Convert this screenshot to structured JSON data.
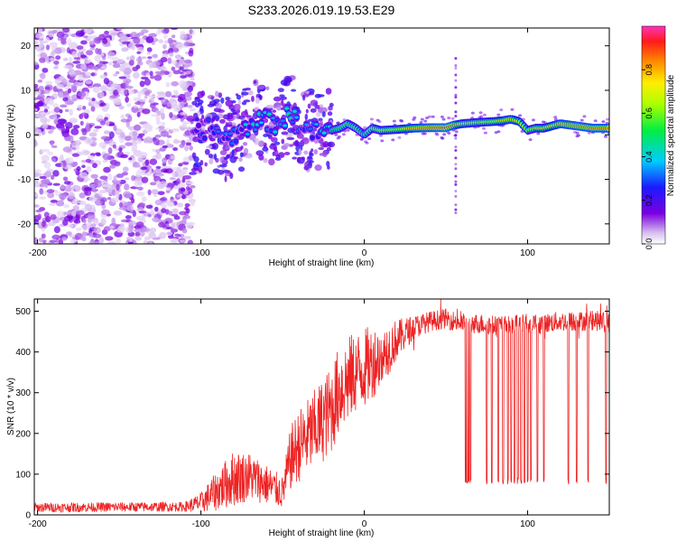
{
  "figure_title": "S233.2026.019.19.53.E29",
  "chart_data": [
    {
      "type": "heatmap",
      "title": "S233.2026.019.19.53.E29",
      "xlabel": "Height of straight line (km)",
      "ylabel": "Frequency (Hz)",
      "xlim": [
        -202,
        150
      ],
      "ylim": [
        -24.5,
        24
      ],
      "xticks": [
        -200,
        -100,
        0,
        100
      ],
      "xtick_labels": [
        "-200",
        "-100",
        "0",
        "100"
      ],
      "yticks": [
        -20,
        -10,
        0,
        10,
        20
      ],
      "ytick_labels": [
        "-20",
        "-10",
        "0",
        "10",
        "20"
      ],
      "colorbar": {
        "label": "Normalized spectral amplitude",
        "range": [
          0,
          1
        ],
        "ticks": [
          0.0,
          0.2,
          0.4,
          0.6,
          0.8
        ],
        "tick_labels": [
          "0.0",
          "0.2",
          "0.4",
          "0.6",
          "0.8"
        ]
      },
      "dominant_frequency_trace": {
        "x": [
          -105,
          -95,
          -85,
          -75,
          -65,
          -55,
          -45,
          -35,
          -25,
          -15,
          -10,
          -5,
          0,
          5,
          10,
          20,
          30,
          40,
          50,
          55,
          60,
          70,
          80,
          85,
          90,
          95,
          100,
          105,
          110,
          120,
          130,
          140,
          150
        ],
        "freq": [
          -1,
          2,
          -1,
          1,
          3.5,
          2.5,
          4.5,
          1,
          0.5,
          1.5,
          2.5,
          1.5,
          0,
          1.5,
          1,
          1.2,
          1.5,
          1.6,
          1.6,
          2.2,
          2.5,
          2.8,
          3,
          3.2,
          3.5,
          3,
          1,
          1.5,
          1.5,
          2.5,
          2,
          1.5,
          1.5
        ],
        "amplitude": [
          0.25,
          0.3,
          0.3,
          0.35,
          0.45,
          0.4,
          0.5,
          0.35,
          0.4,
          0.55,
          0.55,
          0.55,
          0.5,
          0.6,
          0.65,
          0.7,
          0.8,
          0.85,
          0.9,
          0.85,
          0.65,
          0.65,
          0.7,
          0.75,
          0.8,
          0.7,
          0.6,
          0.65,
          0.7,
          0.8,
          0.85,
          0.85,
          0.85
        ]
      },
      "noise_region_x": [
        -202,
        -105
      ]
    },
    {
      "type": "line",
      "xlabel": "Height of straight line (km)",
      "ylabel": "SNR (10 * v/v)",
      "xlim": [
        -202,
        150
      ],
      "ylim": [
        0,
        530
      ],
      "xticks": [
        -200,
        -100,
        0,
        100
      ],
      "xtick_labels": [
        "-200",
        "-100",
        "0",
        "100"
      ],
      "yticks": [
        0,
        100,
        200,
        300,
        400,
        500
      ],
      "ytick_labels": [
        "0",
        "100",
        "200",
        "300",
        "400",
        "500"
      ],
      "color": "#ee2222",
      "envelope": {
        "x": [
          -202,
          -110,
          -100,
          -90,
          -80,
          -70,
          -60,
          -50,
          -45,
          -40,
          -30,
          -20,
          -15,
          -10,
          -5,
          0,
          10,
          20,
          30,
          40,
          50,
          60,
          70,
          80,
          90,
          100,
          110,
          120,
          130,
          140,
          150
        ],
        "mean": [
          18,
          20,
          30,
          60,
          90,
          95,
          75,
          55,
          140,
          170,
          210,
          260,
          310,
          330,
          350,
          360,
          390,
          430,
          460,
          475,
          482,
          470,
          470,
          465,
          465,
          470,
          470,
          475,
          475,
          478,
          470
        ],
        "spread": [
          12,
          12,
          25,
          50,
          70,
          60,
          50,
          40,
          80,
          90,
          100,
          110,
          110,
          110,
          100,
          100,
          80,
          50,
          30,
          25,
          25,
          25,
          25,
          25,
          25,
          25,
          25,
          25,
          25,
          25,
          25
        ]
      },
      "dropouts_x": [
        62,
        63,
        64,
        65,
        75,
        78,
        82,
        85,
        88,
        90,
        92,
        94,
        96,
        98,
        100,
        102,
        106,
        110,
        125,
        130,
        137,
        148
      ],
      "dropout_value": 75
    }
  ]
}
